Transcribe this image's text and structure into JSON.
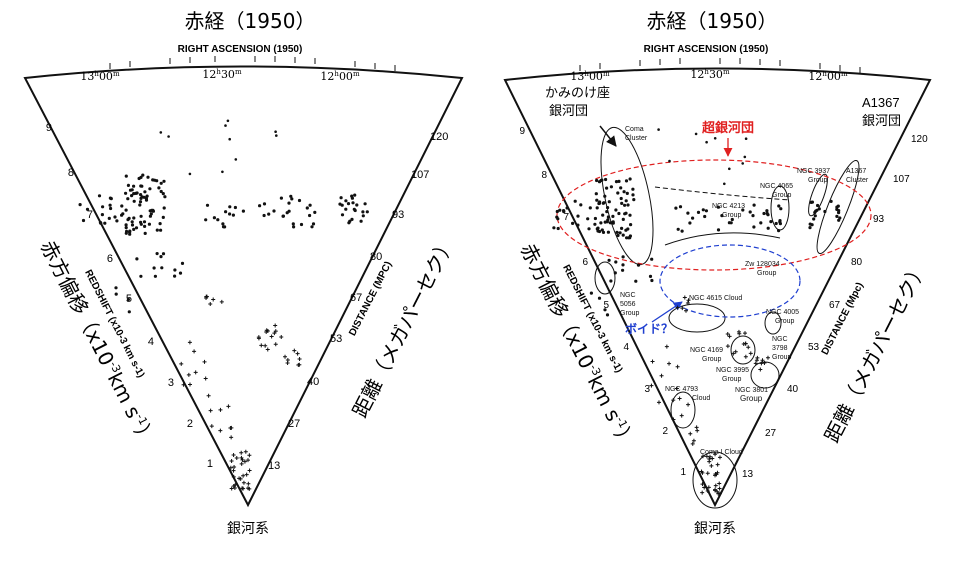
{
  "panels": [
    {
      "title_jp": "赤経（1950）",
      "title_en": "RIGHT ASCENSION (1950)",
      "ra_ticks": [
        {
          "h": "13",
          "m": "00"
        },
        {
          "h": "12",
          "m": "30"
        },
        {
          "h": "12",
          "m": "00"
        }
      ],
      "redshift_label_jp": "赤方偏移（x10",
      "redshift_label_jp_exp": "-3",
      "redshift_label_jp_tail": "km s",
      "redshift_label_jp_exp2": "-1",
      "redshift_label_jp_close": "）",
      "redshift_label_en": "REDSHIFT (x10-3 km s-1)",
      "redshift_ticks": [
        "1",
        "2",
        "3",
        "4",
        "5",
        "6",
        "7",
        "8",
        "9"
      ],
      "distance_label_jp": "距離（メガパーセク）",
      "distance_label_en": "DISTANCE (MPC)",
      "distance_ticks": [
        "13",
        "27",
        "40",
        "53",
        "67",
        "80",
        "93",
        "107",
        "120"
      ],
      "apex_label": "銀河系"
    },
    {
      "title_jp": "赤経（1950）",
      "title_en": "RIGHT ASCENSION (1950)",
      "ra_ticks": [
        {
          "h": "13",
          "m": "00"
        },
        {
          "h": "12",
          "m": "30"
        },
        {
          "h": "12",
          "m": "00"
        }
      ],
      "redshift_label_jp": "赤方偏移（x10",
      "redshift_label_jp_exp": "-3",
      "redshift_label_jp_tail": "km s",
      "redshift_label_jp_exp2": "-1",
      "redshift_label_jp_close": "）",
      "redshift_label_en": "REDSHIFT (x10-3 km s-1)",
      "redshift_ticks": [
        "1",
        "2",
        "3",
        "4",
        "5",
        "6",
        "7",
        "8",
        "9"
      ],
      "distance_label_jp": "距離（メガパーセク）",
      "distance_label_en": "DISTANCE (Mpc)",
      "distance_ticks": [
        "13",
        "27",
        "40",
        "53",
        "67",
        "80",
        "93",
        "107",
        "120"
      ],
      "apex_label": "銀河系",
      "annotations": {
        "coma_jp_line1": "かみのけ座",
        "coma_jp_line2": "銀河団",
        "a1367_line1": "A1367",
        "a1367_line2": "銀河団",
        "supercluster": "超銀河団",
        "void": "ボイド？",
        "coma_cluster_line1": "Coma",
        "coma_cluster_line2": "Cluster",
        "a1367_cluster_line1": "A1367",
        "a1367_cluster_line2": "Cluster",
        "ngc3937_line1": "NGC 3937",
        "ngc3937_line2": "Group",
        "ngc4065_line1": "NGC 4065",
        "ngc4065_line2": "Group",
        "ngc4213_line1": "NGC 4213",
        "ngc4213_line2": "Group",
        "zw_line1": "Zw 128034",
        "zw_line2": "Group",
        "ngc5056_line1": "NGC",
        "ngc5056_line2": "5056",
        "ngc5056_line3": "Group",
        "ngc4615": "NGC 4615 Cloud",
        "ngc4005_line1": "NGC 4005",
        "ngc4005_line2": "Group",
        "ngc4169_line1": "NGC 4169",
        "ngc4169_line2": "Group",
        "ngc3798_line1": "NGC",
        "ngc3798_line2": "3798",
        "ngc3798_line3": "Group",
        "ngc3995_line1": "NGC 3995",
        "ngc3995_line2": "Group",
        "ngc3801_line1": "NGC 3801",
        "ngc3801_line2": "Group",
        "ngc4793_line1": "NGC 4793",
        "ngc4793_line2": "Cloud",
        "coma1_line1": "Coma I Cloud"
      }
    }
  ],
  "colors": {
    "supercluster": "#e02020",
    "void": "#1f3fd0",
    "ink": "#111111"
  }
}
